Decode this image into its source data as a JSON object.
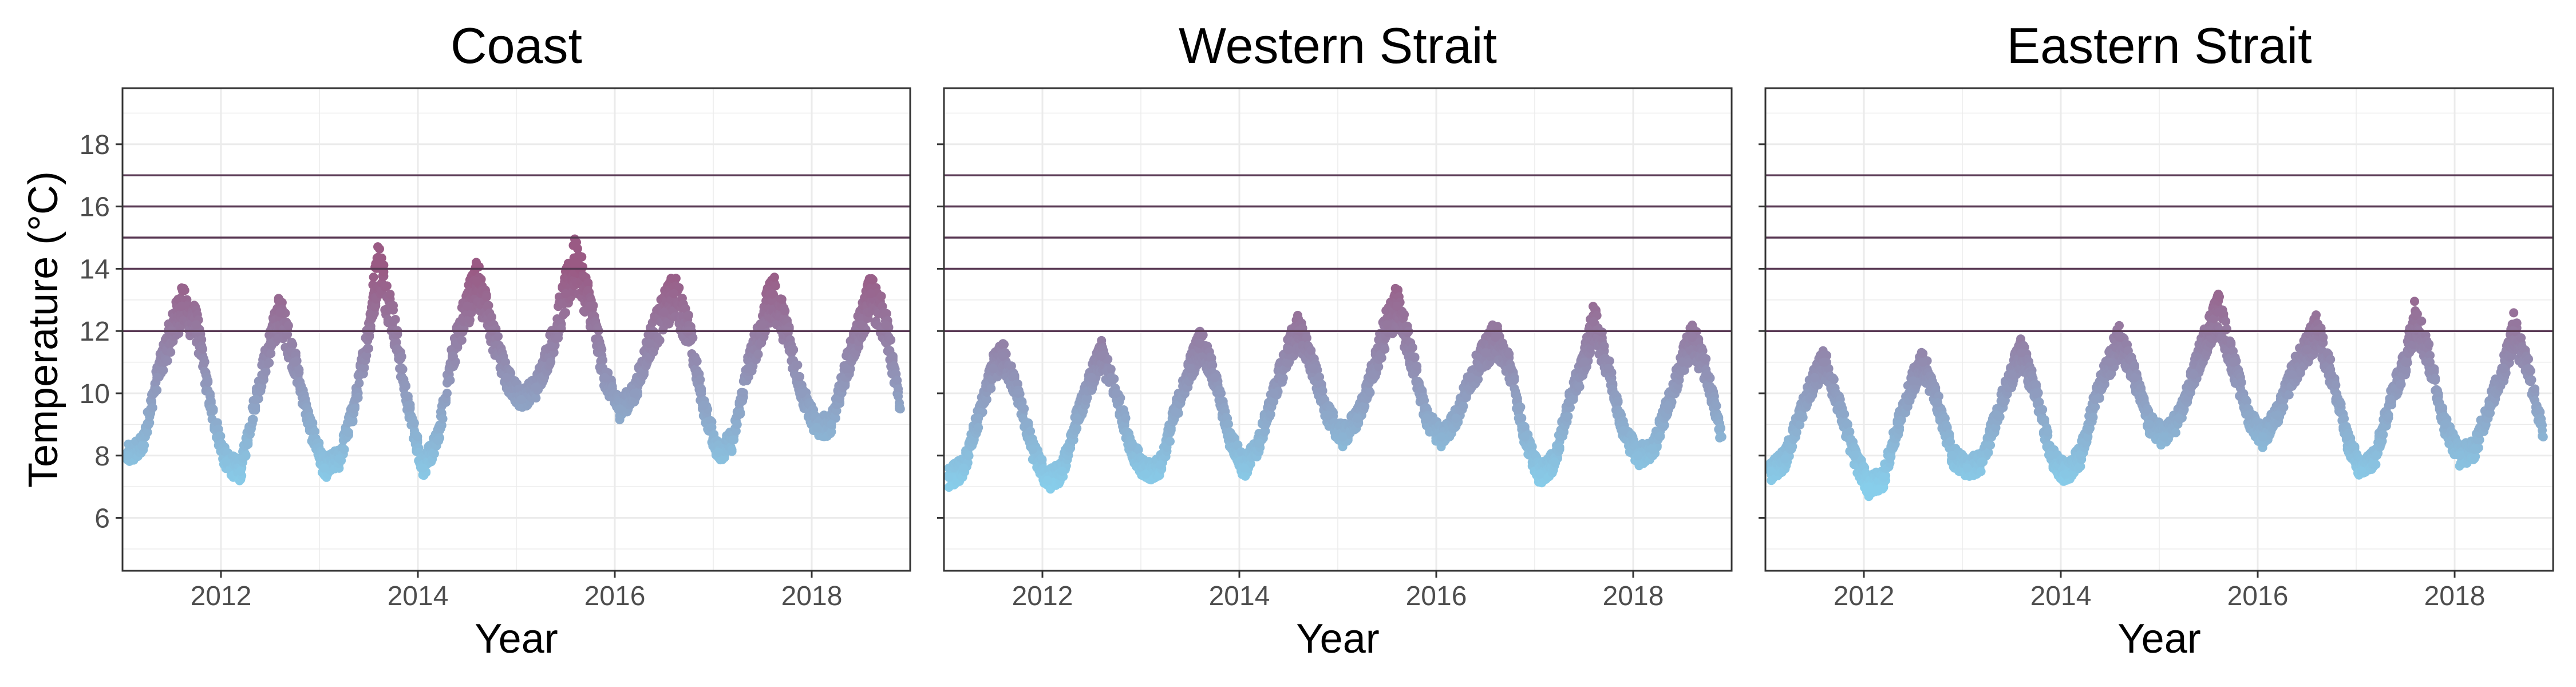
{
  "chart_data": {
    "type": "scatter",
    "ylabel": "Temperature (°C)",
    "xlabel": "Year",
    "xlim": [
      2011.0,
      2019.0
    ],
    "ylim": [
      4.3,
      19.8
    ],
    "x_ticks": [
      2012,
      2014,
      2016,
      2018
    ],
    "x_tick_labels": [
      "2012",
      "2014",
      "2016",
      "2018"
    ],
    "y_ticks": [
      6,
      8,
      10,
      12,
      14,
      16,
      18
    ],
    "y_tick_labels": [
      "6",
      "8",
      "10",
      "12",
      "14",
      "16",
      "18"
    ],
    "threshold_lines": [
      12,
      14,
      15,
      16,
      17
    ],
    "grid": true,
    "color_scale": {
      "low": "#87ceeb",
      "high": "#9a5a84",
      "low_value": 7,
      "high_value": 14
    },
    "threshold_line_color": "#5a3a55",
    "panels": [
      {
        "title": "Coast",
        "series": [
          {
            "x": [
              2011.05,
              2011.2,
              2011.35,
              2011.5,
              2011.6,
              2011.75,
              2011.9,
              2012.05,
              2012.2,
              2012.35,
              2012.5,
              2012.6,
              2012.75,
              2012.9,
              2013.05,
              2013.2,
              2013.35,
              2013.5,
              2013.6,
              2013.75,
              2013.9,
              2014.05,
              2014.2,
              2014.35,
              2014.5,
              2014.6,
              2014.75,
              2014.9,
              2015.05,
              2015.2,
              2015.35,
              2015.5,
              2015.6,
              2015.75,
              2015.9,
              2016.05,
              2016.2,
              2016.35,
              2016.5,
              2016.6,
              2016.75,
              2016.9,
              2017.05,
              2017.2,
              2017.35,
              2017.5,
              2017.6,
              2017.75,
              2017.9,
              2018.05,
              2018.2,
              2018.35,
              2018.5,
              2018.6,
              2018.75,
              2018.9
            ],
            "y": [
              8.0,
              8.3,
              10.5,
              12.0,
              12.8,
              12.2,
              9.5,
              7.8,
              7.5,
              9.8,
              11.6,
              12.6,
              11.0,
              9.0,
              7.6,
              7.9,
              9.5,
              12.0,
              14.2,
              12.3,
              9.6,
              7.6,
              8.5,
              11.2,
              12.8,
              13.6,
              12.0,
              10.5,
              9.8,
              10.2,
              11.5,
              13.2,
              14.2,
              12.8,
              10.5,
              9.5,
              10.0,
              11.6,
              12.6,
              13.2,
              12.0,
              9.6,
              8.1,
              8.5,
              10.8,
              12.2,
              13.2,
              12.0,
              10.0,
              8.9,
              9.0,
              10.8,
              12.2,
              13.2,
              12.2,
              9.5
            ]
          }
        ]
      },
      {
        "title": "Western Strait",
        "series": [
          {
            "x": [
              2011.05,
              2011.2,
              2011.35,
              2011.5,
              2011.6,
              2011.75,
              2011.9,
              2012.05,
              2012.2,
              2012.35,
              2012.5,
              2012.6,
              2012.75,
              2012.9,
              2013.05,
              2013.2,
              2013.35,
              2013.5,
              2013.6,
              2013.75,
              2013.9,
              2014.05,
              2014.2,
              2014.35,
              2014.5,
              2014.6,
              2014.75,
              2014.9,
              2015.05,
              2015.2,
              2015.35,
              2015.5,
              2015.6,
              2015.75,
              2015.9,
              2016.05,
              2016.2,
              2016.35,
              2016.5,
              2016.6,
              2016.75,
              2016.9,
              2017.05,
              2017.2,
              2017.35,
              2017.5,
              2017.6,
              2017.75,
              2017.9,
              2018.05,
              2018.2,
              2018.35,
              2018.5,
              2018.6,
              2018.75,
              2018.9
            ],
            "y": [
              7.3,
              7.6,
              9.2,
              10.8,
              11.2,
              10.0,
              8.2,
              7.2,
              7.5,
              9.2,
              10.5,
              11.2,
              10.0,
              8.3,
              7.4,
              7.7,
              9.4,
              10.8,
              11.6,
              10.5,
              8.6,
              7.6,
              8.4,
              10.0,
              11.4,
              12.0,
              10.8,
              9.3,
              8.6,
              9.2,
              10.6,
              12.2,
              12.8,
              11.2,
              9.2,
              8.6,
              9.2,
              10.5,
              11.3,
              11.8,
              10.8,
              8.6,
              7.4,
              7.8,
              9.7,
              11.0,
              12.3,
              10.8,
              8.8,
              8.0,
              8.2,
              9.6,
              11.0,
              11.8,
              10.6,
              8.6
            ]
          }
        ]
      },
      {
        "title": "Eastern Strait",
        "series": [
          {
            "x": [
              2011.05,
              2011.2,
              2011.35,
              2011.5,
              2011.6,
              2011.75,
              2011.9,
              2012.05,
              2012.2,
              2012.35,
              2012.5,
              2012.6,
              2012.75,
              2012.9,
              2013.05,
              2013.2,
              2013.35,
              2013.5,
              2013.6,
              2013.75,
              2013.9,
              2014.05,
              2014.2,
              2014.35,
              2014.5,
              2014.6,
              2014.75,
              2014.9,
              2015.05,
              2015.2,
              2015.35,
              2015.5,
              2015.6,
              2015.75,
              2015.9,
              2016.05,
              2016.2,
              2016.35,
              2016.5,
              2016.6,
              2016.75,
              2016.9,
              2017.05,
              2017.2,
              2017.35,
              2017.5,
              2017.6,
              2017.75,
              2017.9,
              2018.05,
              2018.2,
              2018.35,
              2018.5,
              2018.6,
              2018.75,
              2018.9
            ],
            "y": [
              7.5,
              7.9,
              9.3,
              10.5,
              11.0,
              9.6,
              8.0,
              7.0,
              7.3,
              9.0,
              10.4,
              11.0,
              9.7,
              8.0,
              7.6,
              7.8,
              9.3,
              10.6,
              11.3,
              10.0,
              8.0,
              7.4,
              8.0,
              9.8,
              11.0,
              11.8,
              10.5,
              9.0,
              8.6,
              9.2,
              10.6,
              12.0,
              12.6,
              11.0,
              9.3,
              8.6,
              9.3,
              10.6,
              11.4,
              12.0,
              10.6,
              8.6,
              7.5,
              8.0,
              9.8,
              11.0,
              12.5,
              11.0,
              9.0,
              8.0,
              8.2,
              9.6,
              10.8,
              12.0,
              10.8,
              8.6
            ]
          }
        ]
      }
    ]
  }
}
